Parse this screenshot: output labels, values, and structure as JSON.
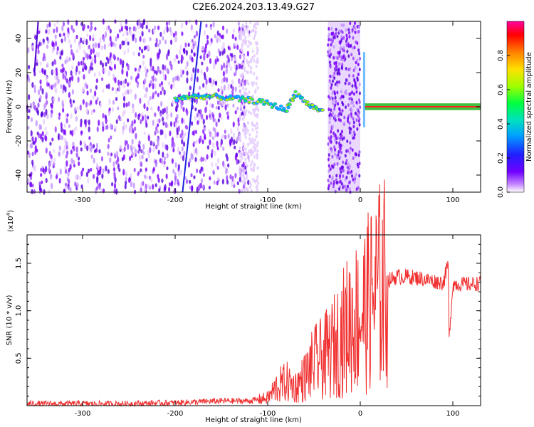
{
  "figure_title": "C2E6.2024.203.13.49.G27",
  "colors": {
    "accent": "#7b00ff",
    "snr_line": "#f03030",
    "carrier": "#ff2020"
  },
  "chart_data": [
    {
      "type": "heatmap",
      "title": "C2E6.2024.203.13.49.G27",
      "xlabel": "Height of straight line (km)",
      "ylabel": "Frequency (Hz)",
      "xlim": [
        -360,
        130
      ],
      "ylim": [
        -50,
        50
      ],
      "xticks": [
        -300,
        -200,
        -100,
        0,
        100
      ],
      "yticks": [
        -40,
        -20,
        0,
        20,
        40
      ],
      "colorbar": {
        "label": "Normalized spectral amplitude",
        "range": [
          0,
          1
        ],
        "ticks": [
          "0.0",
          "0.2",
          "0.4",
          "0.6",
          "0.8"
        ],
        "colormap": "rainbow (white/violet low → red high)"
      },
      "features": {
        "noise_region": [
          -360,
          -120
        ],
        "drifting_signal": [
          {
            "x": -200,
            "y": 5
          },
          {
            "x": -180,
            "y": 6
          },
          {
            "x": -160,
            "y": 6
          },
          {
            "x": -140,
            "y": 5
          },
          {
            "x": -120,
            "y": 4
          },
          {
            "x": -100,
            "y": 2
          },
          {
            "x": -80,
            "y": -2
          },
          {
            "x": -70,
            "y": 8
          },
          {
            "x": -55,
            "y": 1
          },
          {
            "x": -40,
            "y": -3
          }
        ],
        "dense_band": [
          -35,
          0
        ],
        "steady_carrier": {
          "x_start": 5,
          "x_end": 130,
          "frequency": 0
        }
      }
    },
    {
      "type": "line",
      "xlabel": "Height of straight line (km)",
      "ylabel": "SNR (10 * v/v)",
      "y_scale_label": "(x10",
      "y_scale_exponent": "4",
      "y_scale_close": ")",
      "xlim": [
        -360,
        130
      ],
      "ylim": [
        0,
        1.8
      ],
      "xticks": [
        -300,
        -200,
        -100,
        0,
        100
      ],
      "yticks": [
        0.5,
        1.0,
        1.5
      ],
      "series": [
        {
          "color": "#f03030",
          "points": [
            [
              -360,
              0.02
            ],
            [
              -300,
              0.02
            ],
            [
              -250,
              0.02
            ],
            [
              -200,
              0.03
            ],
            [
              -150,
              0.05
            ],
            [
              -120,
              0.05
            ],
            [
              -100,
              0.08
            ],
            [
              -90,
              0.2
            ],
            [
              -80,
              0.25
            ],
            [
              -70,
              0.2
            ],
            [
              -60,
              0.3
            ],
            [
              -50,
              0.45
            ],
            [
              -40,
              0.5
            ],
            [
              -30,
              0.6
            ],
            [
              -20,
              0.75
            ],
            [
              -10,
              0.9
            ],
            [
              0,
              0.95
            ],
            [
              10,
              1.1
            ],
            [
              20,
              1.25
            ],
            [
              30,
              1.32
            ],
            [
              40,
              1.36
            ],
            [
              50,
              1.36
            ],
            [
              60,
              1.35
            ],
            [
              70,
              1.33
            ],
            [
              80,
              1.31
            ],
            [
              90,
              1.3
            ],
            [
              95,
              1.5
            ],
            [
              96,
              0.7
            ],
            [
              100,
              1.28
            ],
            [
              110,
              1.28
            ],
            [
              120,
              1.28
            ],
            [
              130,
              1.29
            ]
          ]
        }
      ]
    }
  ]
}
